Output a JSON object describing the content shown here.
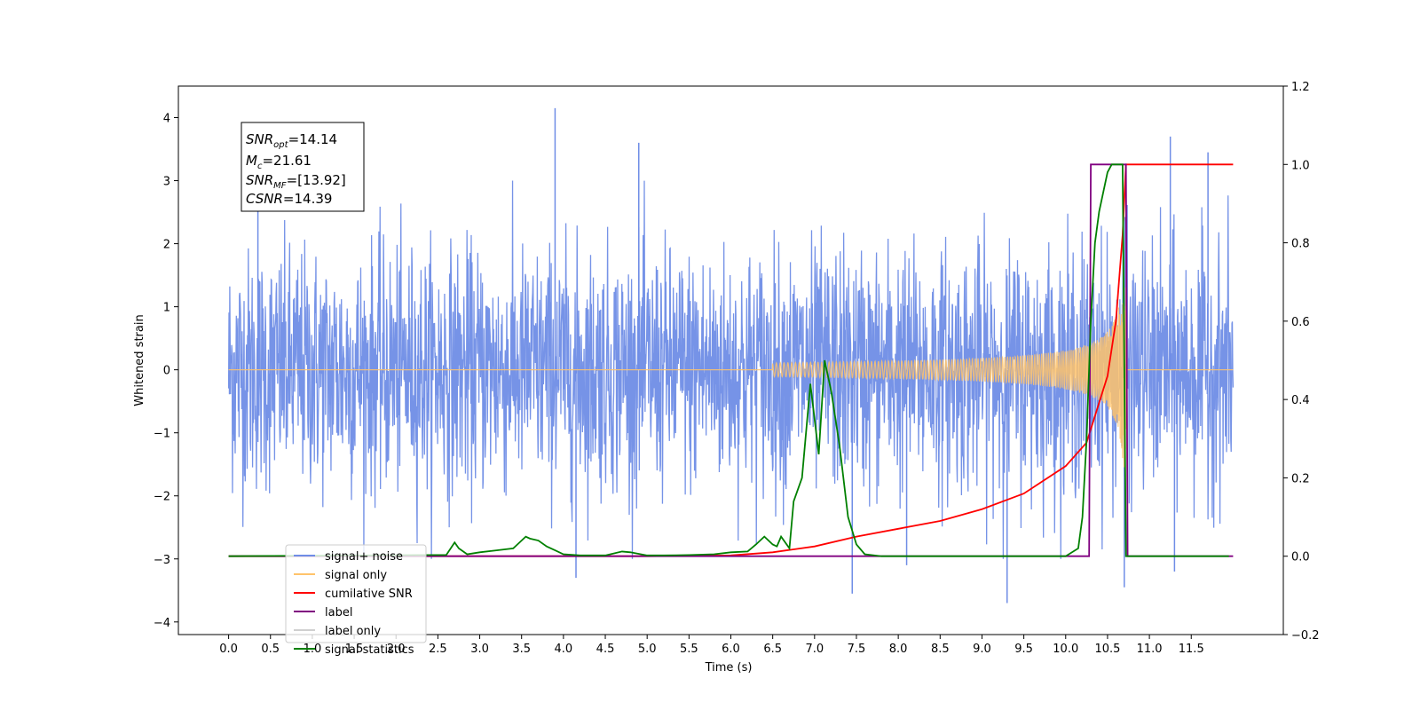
{
  "chart_data": {
    "type": "line",
    "xlabel": "Time (s)",
    "ylabel": "Whitened strain",
    "xlim": [
      -0.6,
      12.6
    ],
    "ylim": [
      -4.2,
      4.5
    ],
    "ylim_right": [
      -0.2,
      1.2
    ],
    "x_ticks": [
      "0.0",
      "0.5",
      "1.0",
      "1.5",
      "2.0",
      "2.5",
      "3.0",
      "3.5",
      "4.0",
      "4.5",
      "5.0",
      "5.5",
      "6.0",
      "6.5",
      "7.0",
      "7.5",
      "8.0",
      "8.5",
      "9.0",
      "9.5",
      "10.0",
      "10.5",
      "11.0",
      "11.5"
    ],
    "x_tick_values": [
      0,
      0.5,
      1,
      1.5,
      2,
      2.5,
      3,
      3.5,
      4,
      4.5,
      5,
      5.5,
      6,
      6.5,
      7,
      7.5,
      8,
      8.5,
      9,
      9.5,
      10,
      10.5,
      11,
      11.5
    ],
    "y_ticks": [
      "4",
      "3",
      "2",
      "1",
      "0",
      "−1",
      "−2",
      "−3",
      "−4"
    ],
    "y_tick_values": [
      4,
      3,
      2,
      1,
      0,
      -1,
      -2,
      -3,
      -4
    ],
    "y_right_ticks": [
      "1.2",
      "1.0",
      "0.8",
      "0.6",
      "0.4",
      "0.2",
      "0.0",
      "−0.2"
    ],
    "y_right_tick_values": [
      1.2,
      1.0,
      0.8,
      0.6,
      0.4,
      0.2,
      0.0,
      -0.2
    ],
    "annotation": {
      "snr_opt_label": "SNR",
      "snr_opt_sub": "opt",
      "snr_opt_value": "=14.14",
      "mc_label": "M",
      "mc_sub": "c",
      "mc_value": "=21.61",
      "snr_mf_label": "SNR",
      "snr_mf_sub": "MF",
      "snr_mf_value": "=[13.92]",
      "csnr_label": "CSNR",
      "csnr_value": "=14.39"
    },
    "legend": {
      "placement": "lower-left",
      "entries": [
        {
          "label": "signal+ noise",
          "color": "#6f8de6"
        },
        {
          "label": "signal only",
          "color": "#ffc36b"
        },
        {
          "label": "cumilative SNR",
          "color": "#ff0000"
        },
        {
          "label": "label",
          "color": "#800080"
        },
        {
          "label": "label only",
          "color": "#d0d0d0"
        },
        {
          "label": "signal statistics",
          "color": "#008000"
        }
      ]
    },
    "series": [
      {
        "name": "signal+ noise",
        "axis": "left",
        "color": "#6f8de6",
        "description_note": "",
        "x_range": [
          0.0,
          12.0
        ],
        "amplitude_typical": 1.0,
        "peaks": [
          {
            "x": 3.9,
            "y": 4.15
          },
          {
            "x": 11.25,
            "y": 3.7
          },
          {
            "x": 4.9,
            "y": 3.6
          },
          {
            "x": 0.35,
            "y": 3.5
          },
          {
            "x": 11.7,
            "y": 3.45
          },
          {
            "x": 9.3,
            "y": -3.7
          },
          {
            "x": 7.45,
            "y": -3.55
          },
          {
            "x": 10.7,
            "y": -3.45
          },
          {
            "x": 4.15,
            "y": -3.3
          },
          {
            "x": 11.3,
            "y": -3.2
          },
          {
            "x": 8.1,
            "y": -3.1
          }
        ]
      },
      {
        "name": "signal only",
        "axis": "left",
        "color": "#ffc36b",
        "chirp_start": 6.5,
        "chirp_end": 10.72,
        "peak_amplitude": 2.9
      },
      {
        "name": "cumilative SNR",
        "axis": "right",
        "color": "#ff0000",
        "x": [
          0.0,
          1.0,
          2.0,
          3.0,
          4.0,
          5.0,
          6.0,
          6.5,
          7.0,
          7.5,
          8.0,
          8.5,
          9.0,
          9.5,
          10.0,
          10.25,
          10.5,
          10.6,
          10.68,
          10.72,
          10.75,
          12.0
        ],
        "y": [
          0.0,
          0.0,
          0.0,
          0.0,
          0.0,
          0.0,
          0.002,
          0.01,
          0.025,
          0.05,
          0.07,
          0.09,
          0.12,
          0.16,
          0.23,
          0.29,
          0.46,
          0.6,
          0.82,
          1.0,
          1.0,
          1.0
        ]
      },
      {
        "name": "label",
        "axis": "right",
        "color": "#800080",
        "x": [
          0.0,
          10.28,
          10.3,
          10.72,
          10.74,
          12.0
        ],
        "y": [
          0.0,
          0.0,
          1.0,
          1.0,
          0.0,
          0.0
        ]
      },
      {
        "name": "signal statistics",
        "axis": "right",
        "color": "#008000",
        "x": [
          0.0,
          2.4,
          2.6,
          2.7,
          2.75,
          2.85,
          3.0,
          3.2,
          3.4,
          3.55,
          3.6,
          3.7,
          3.8,
          3.9,
          4.0,
          4.2,
          4.5,
          4.7,
          4.8,
          5.0,
          5.2,
          5.5,
          5.8,
          6.0,
          6.2,
          6.3,
          6.4,
          6.5,
          6.55,
          6.6,
          6.7,
          6.75,
          6.85,
          6.95,
          7.05,
          7.12,
          7.2,
          7.3,
          7.4,
          7.5,
          7.6,
          7.8,
          8.0,
          9.0,
          10.0,
          10.15,
          10.2,
          10.25,
          10.3,
          10.35,
          10.4,
          10.5,
          10.55,
          10.65,
          10.68,
          10.72,
          10.76,
          11.0,
          11.95
        ],
        "y": [
          0.0,
          0.003,
          0.003,
          0.035,
          0.02,
          0.005,
          0.01,
          0.015,
          0.02,
          0.05,
          0.045,
          0.04,
          0.025,
          0.015,
          0.005,
          0.002,
          0.002,
          0.012,
          0.01,
          0.002,
          0.002,
          0.003,
          0.005,
          0.01,
          0.012,
          0.03,
          0.05,
          0.03,
          0.025,
          0.05,
          0.02,
          0.14,
          0.2,
          0.44,
          0.26,
          0.5,
          0.42,
          0.28,
          0.1,
          0.03,
          0.005,
          0.0,
          0.0,
          0.0,
          0.0,
          0.02,
          0.1,
          0.3,
          0.6,
          0.8,
          0.88,
          0.98,
          1.0,
          1.0,
          1.0,
          0.0,
          0.0,
          0.0,
          0.0
        ]
      }
    ]
  }
}
